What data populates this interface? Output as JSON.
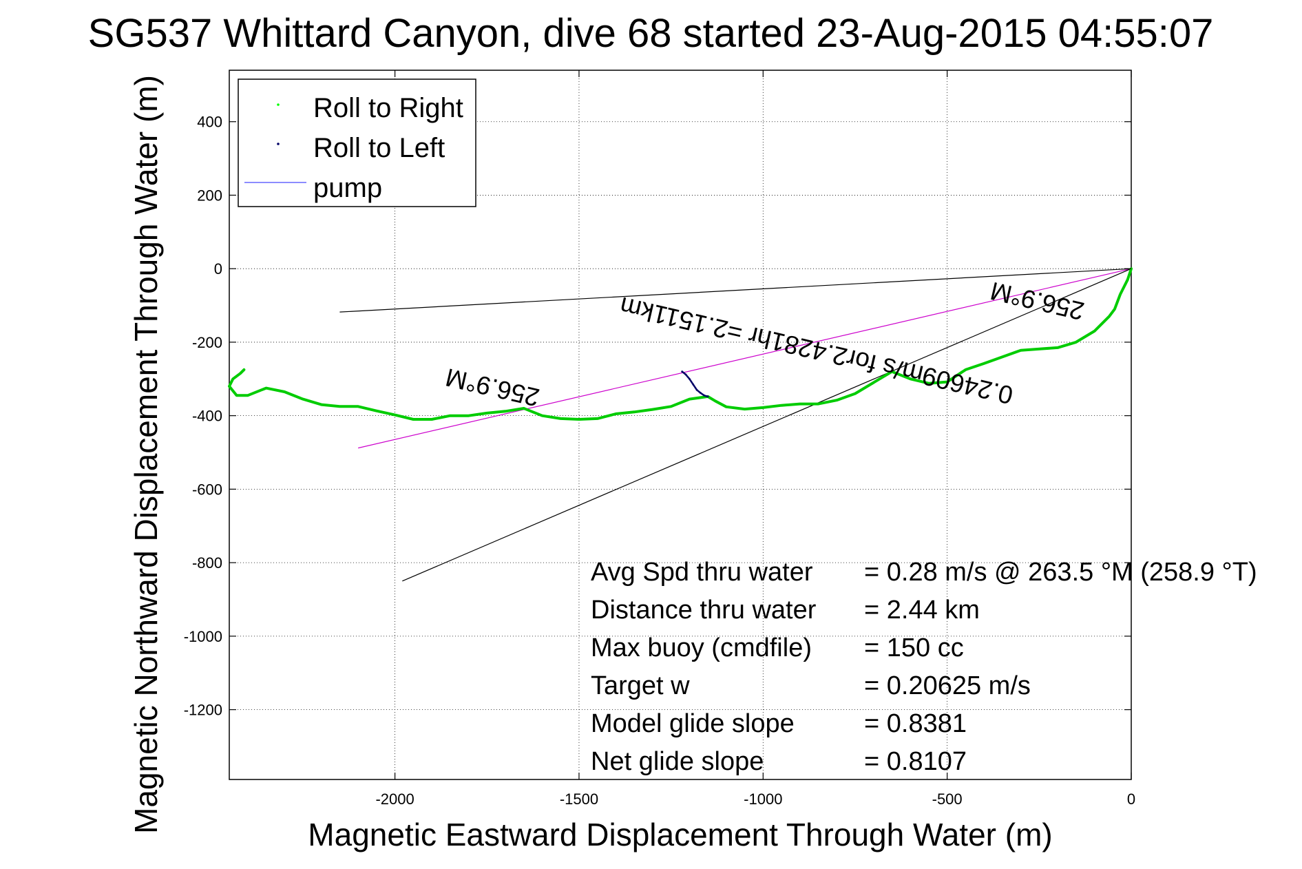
{
  "chart_data": {
    "type": "line",
    "title": "SG537 Whittard Canyon, dive 68 started 23-Aug-2015 04:55:07",
    "xlabel": "Magnetic Eastward Displacement Through Water (m)",
    "ylabel": "Magnetic Northward Displacement Through Water (m)",
    "xlim": [
      -2450,
      0
    ],
    "ylim": [
      -1390,
      540
    ],
    "xticks": [
      -2000,
      -1500,
      -1000,
      -500,
      0
    ],
    "xtick_labels": [
      "-2000",
      "-1500",
      "-1000",
      "-500",
      "0"
    ],
    "yticks": [
      400,
      200,
      0,
      -200,
      -400,
      -600,
      -800,
      -1000,
      -1200
    ],
    "ytick_labels": [
      "400",
      "200",
      "0",
      "-200",
      "-400",
      "-600",
      "-800",
      "-1000",
      "-1200"
    ],
    "grid": true,
    "legend_position": "top-left",
    "legend": [
      {
        "label": "Roll to Right",
        "color": "#00ff00",
        "marker": "dot"
      },
      {
        "label": "Roll to Left",
        "color": "#000066",
        "marker": "dot"
      },
      {
        "label": "pump",
        "color": "#6666ff",
        "marker": "line"
      }
    ],
    "series": [
      {
        "name": "Roll to Right",
        "color": "#00cc00",
        "x": [
          0,
          -10,
          -30,
          -45,
          -60,
          -100,
          -150,
          -200,
          -300,
          -400,
          -450,
          -500,
          -550,
          -600,
          -650,
          -700,
          -750,
          -800,
          -850,
          -900,
          -950,
          -1000,
          -1050,
          -1100,
          -1130,
          -1150,
          -1200,
          -1250,
          -1300,
          -1350,
          -1400,
          -1450,
          -1500,
          -1550,
          -1600,
          -1650,
          -1700,
          -1750,
          -1800,
          -1850,
          -1900,
          -1950,
          -2000,
          -2050,
          -2100,
          -2150,
          -2200,
          -2250,
          -2300,
          -2350,
          -2400,
          -2430,
          -2450,
          -2440,
          -2420,
          -2410
        ],
        "y": [
          0,
          -30,
          -70,
          -110,
          -130,
          -170,
          -200,
          -215,
          -222,
          -258,
          -275,
          -308,
          -312,
          -300,
          -280,
          -310,
          -340,
          -358,
          -368,
          -368,
          -372,
          -378,
          -382,
          -376,
          -360,
          -348,
          -355,
          -375,
          -383,
          -390,
          -395,
          -408,
          -410,
          -408,
          -400,
          -380,
          -388,
          -393,
          -400,
          -400,
          -410,
          -410,
          -398,
          -387,
          -375,
          -375,
          -370,
          -355,
          -335,
          -325,
          -345,
          -345,
          -320,
          -300,
          -285,
          -275
        ]
      },
      {
        "name": "Roll to Left",
        "color": "#000066",
        "x": [
          -1150,
          -1160,
          -1170,
          -1180,
          -1190,
          -1200,
          -1210,
          -1220
        ],
        "y": [
          -348,
          -345,
          -338,
          -330,
          -315,
          -300,
          -288,
          -280
        ]
      }
    ],
    "reference_lines": [
      {
        "color": "#cc00cc",
        "x": [
          0,
          -2100
        ],
        "y": [
          0,
          -488
        ]
      },
      {
        "color": "#000000",
        "x": [
          0,
          -2150
        ],
        "y": [
          0,
          -118
        ]
      },
      {
        "color": "#000000",
        "x": [
          0,
          -1980
        ],
        "y": [
          0,
          -850
        ]
      }
    ],
    "annotations": [
      {
        "text": "256.9°M",
        "x": -250,
        "y": -65,
        "rotate": 193
      },
      {
        "text": "0.24609m/s for2.4281hr =2.1511km",
        "x": -850,
        "y": -200,
        "rotate": 193
      },
      {
        "text": "256.9°M",
        "x": -1730,
        "y": -300,
        "rotate": 193
      }
    ],
    "stats": [
      {
        "label": "Avg Spd thru water",
        "value": "=  0.28 m/s @ 263.5 °M (258.9 °T)"
      },
      {
        "label": "Distance thru water",
        "value": "=  2.44 km"
      },
      {
        "label": "Max buoy (cmdfile)",
        "value": "= 150 cc"
      },
      {
        "label": "Target w",
        "value": "= 0.20625 m/s"
      },
      {
        "label": "Model glide slope",
        "value": "= 0.8381"
      },
      {
        "label": "Net glide slope",
        "value": "= 0.8107"
      }
    ]
  }
}
